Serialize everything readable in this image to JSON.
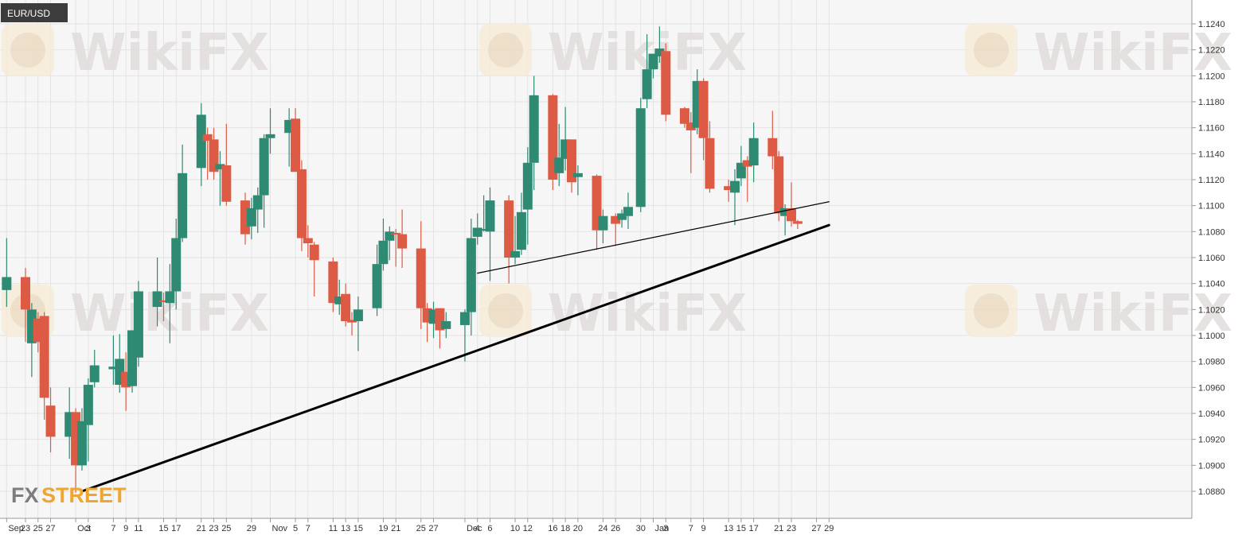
{
  "symbol": "EUR/USD",
  "watermark": {
    "text": "WikiFX"
  },
  "logo": {
    "part1": "FX",
    "part2": "STREET"
  },
  "colors": {
    "background": "#f6f6f6",
    "grid": "#e3e3e3",
    "up": "#2e8a72",
    "down": "#dd5a45",
    "trendline": "#000000",
    "axis_text": "#333333",
    "label_bg": "#3c3c3c"
  },
  "chart_data": {
    "type": "candlestick",
    "title": "EUR/USD",
    "xlabel": "",
    "ylabel": "",
    "ylim": [
      1.0862,
      1.1254
    ],
    "yticks": [
      "1.0880",
      "1.0900",
      "1.0920",
      "1.0940",
      "1.0960",
      "1.0980",
      "1.1000",
      "1.1020",
      "1.1040",
      "1.1060",
      "1.1080",
      "1.1100",
      "1.1120",
      "1.1140",
      "1.1160",
      "1.1180",
      "1.1200",
      "1.1220",
      "1.1240"
    ],
    "xticks": [
      "Sep",
      "23",
      "25",
      "27",
      "Oct",
      "3",
      "7",
      "9",
      "11",
      "15",
      "17",
      "21",
      "23",
      "25",
      "29",
      "Nov",
      "5",
      "7",
      "11",
      "13",
      "15",
      "19",
      "21",
      "25",
      "27",
      "Dec",
      "4",
      "6",
      "10",
      "12",
      "16",
      "18",
      "20",
      "24",
      "26",
      "30",
      "Jan",
      "3",
      "7",
      "9",
      "13",
      "15",
      "17",
      "21",
      "23",
      "27",
      "29"
    ],
    "grid": true,
    "series": [
      {
        "values": [
          {
            "date": "2019-09-20",
            "open": 1.1035,
            "high": 1.1075,
            "low": 1.1022,
            "close": 1.1045
          },
          {
            "date": "2019-09-23",
            "open": 1.1045,
            "high": 1.1052,
            "low": 1.0995,
            "close": 1.102
          },
          {
            "date": "2019-09-24",
            "open": 1.0994,
            "high": 1.1025,
            "low": 1.0968,
            "close": 1.102
          },
          {
            "date": "2019-09-25",
            "open": 1.1013,
            "high": 1.1018,
            "low": 1.0987,
            "close": 1.0995
          },
          {
            "date": "2019-09-26",
            "open": 1.1015,
            "high": 1.1018,
            "low": 1.0935,
            "close": 1.0952
          },
          {
            "date": "2019-09-27",
            "open": 1.0946,
            "high": 1.096,
            "low": 1.091,
            "close": 1.0922
          },
          {
            "date": "2019-09-30",
            "open": 1.0922,
            "high": 1.096,
            "low": 1.0905,
            "close": 1.0941
          },
          {
            "date": "2019-10-01",
            "open": 1.0941,
            "high": 1.0944,
            "low": 1.0879,
            "close": 1.09
          },
          {
            "date": "2019-10-02",
            "open": 1.09,
            "high": 1.0944,
            "low": 1.0896,
            "close": 1.0934
          },
          {
            "date": "2019-10-03",
            "open": 1.0931,
            "high": 1.0967,
            "low": 1.0903,
            "close": 1.0962
          },
          {
            "date": "2019-10-04",
            "open": 1.0964,
            "high": 1.0989,
            "low": 1.096,
            "close": 1.0977
          },
          {
            "date": "2019-10-07",
            "open": 1.0974,
            "high": 1.1,
            "low": 1.0962,
            "close": 1.0976
          },
          {
            "date": "2019-10-08",
            "open": 1.0962,
            "high": 1.1001,
            "low": 1.0956,
            "close": 1.0982
          },
          {
            "date": "2019-10-09",
            "open": 1.0972,
            "high": 1.0987,
            "low": 1.0942,
            "close": 1.096
          },
          {
            "date": "2019-10-10",
            "open": 1.0961,
            "high": 1.0995,
            "low": 1.0956,
            "close": 1.1004
          },
          {
            "date": "2019-10-11",
            "open": 1.0983,
            "high": 1.1042,
            "low": 1.0976,
            "close": 1.1034
          },
          {
            "date": "2019-10-14",
            "open": 1.1022,
            "high": 1.106,
            "low": 1.1007,
            "close": 1.1034
          },
          {
            "date": "2019-10-15",
            "open": 1.1027,
            "high": 1.1033,
            "low": 1.1011,
            "close": 1.1026
          },
          {
            "date": "2019-10-16",
            "open": 1.1025,
            "high": 1.1055,
            "low": 1.0994,
            "close": 1.1034
          },
          {
            "date": "2019-10-17",
            "open": 1.1034,
            "high": 1.109,
            "low": 1.102,
            "close": 1.1075
          },
          {
            "date": "2019-10-18",
            "open": 1.1075,
            "high": 1.1147,
            "low": 1.1072,
            "close": 1.1125
          },
          {
            "date": "2019-10-21",
            "open": 1.1129,
            "high": 1.1179,
            "low": 1.1115,
            "close": 1.117
          },
          {
            "date": "2019-10-22",
            "open": 1.1155,
            "high": 1.116,
            "low": 1.112,
            "close": 1.115
          },
          {
            "date": "2019-10-23",
            "open": 1.1151,
            "high": 1.116,
            "low": 1.112,
            "close": 1.1126
          },
          {
            "date": "2019-10-24",
            "open": 1.1128,
            "high": 1.1142,
            "low": 1.11,
            "close": 1.1132
          },
          {
            "date": "2019-10-25",
            "open": 1.1131,
            "high": 1.1163,
            "low": 1.11,
            "close": 1.1103
          },
          {
            "date": "2019-10-28",
            "open": 1.1104,
            "high": 1.111,
            "low": 1.107,
            "close": 1.1078
          },
          {
            "date": "2019-10-29",
            "open": 1.1084,
            "high": 1.1106,
            "low": 1.1074,
            "close": 1.1098
          },
          {
            "date": "2019-10-30",
            "open": 1.1097,
            "high": 1.1114,
            "low": 1.1079,
            "close": 1.1108
          },
          {
            "date": "2019-10-31",
            "open": 1.1108,
            "high": 1.1155,
            "low": 1.1083,
            "close": 1.1152
          },
          {
            "date": "2019-11-01",
            "open": 1.1152,
            "high": 1.1175,
            "low": 1.114,
            "close": 1.1155
          },
          {
            "date": "2019-11-04",
            "open": 1.1156,
            "high": 1.1175,
            "low": 1.113,
            "close": 1.1166
          },
          {
            "date": "2019-11-05",
            "open": 1.1167,
            "high": 1.1175,
            "low": 1.1128,
            "close": 1.1126
          },
          {
            "date": "2019-11-06",
            "open": 1.1128,
            "high": 1.1135,
            "low": 1.1065,
            "close": 1.1075
          },
          {
            "date": "2019-11-07",
            "open": 1.1075,
            "high": 1.1085,
            "low": 1.106,
            "close": 1.1071
          },
          {
            "date": "2019-11-08",
            "open": 1.107,
            "high": 1.1072,
            "low": 1.103,
            "close": 1.1058
          },
          {
            "date": "2019-11-11",
            "open": 1.1057,
            "high": 1.106,
            "low": 1.1018,
            "close": 1.1025
          },
          {
            "date": "2019-11-12",
            "open": 1.1024,
            "high": 1.1043,
            "low": 1.1016,
            "close": 1.103
          },
          {
            "date": "2019-11-13",
            "open": 1.1032,
            "high": 1.104,
            "low": 1.1007,
            "close": 1.1011
          },
          {
            "date": "2019-11-14",
            "open": 1.1012,
            "high": 1.1018,
            "low": 1.1,
            "close": 1.101
          },
          {
            "date": "2019-11-15",
            "open": 1.1011,
            "high": 1.103,
            "low": 1.0988,
            "close": 1.102
          },
          {
            "date": "2019-11-18",
            "open": 1.1021,
            "high": 1.107,
            "low": 1.1015,
            "close": 1.1055
          },
          {
            "date": "2019-11-19",
            "open": 1.1055,
            "high": 1.109,
            "low": 1.105,
            "close": 1.1073
          },
          {
            "date": "2019-11-20",
            "open": 1.1073,
            "high": 1.1084,
            "low": 1.1058,
            "close": 1.108
          },
          {
            "date": "2019-11-21",
            "open": 1.1079,
            "high": 1.1082,
            "low": 1.1053,
            "close": 1.1078
          },
          {
            "date": "2019-11-22",
            "open": 1.1078,
            "high": 1.1097,
            "low": 1.1052,
            "close": 1.1067
          },
          {
            "date": "2019-11-25",
            "open": 1.1067,
            "high": 1.1088,
            "low": 1.1005,
            "close": 1.1021
          },
          {
            "date": "2019-11-26",
            "open": 1.1021,
            "high": 1.1025,
            "low": 1.0995,
            "close": 1.101
          },
          {
            "date": "2019-11-27",
            "open": 1.1009,
            "high": 1.1026,
            "low": 1.0998,
            "close": 1.102
          },
          {
            "date": "2019-11-28",
            "open": 1.1021,
            "high": 1.1021,
            "low": 1.099,
            "close": 1.1004
          },
          {
            "date": "2019-11-29",
            "open": 1.1005,
            "high": 1.1018,
            "low": 1.0998,
            "close": 1.1011
          },
          {
            "date": "2019-12-02",
            "open": 1.1008,
            "high": 1.102,
            "low": 1.098,
            "close": 1.1018
          },
          {
            "date": "2019-12-03",
            "open": 1.1018,
            "high": 1.109,
            "low": 1.1,
            "close": 1.1075
          },
          {
            "date": "2019-12-04",
            "open": 1.1076,
            "high": 1.1094,
            "low": 1.107,
            "close": 1.1083
          },
          {
            "date": "2019-12-05",
            "open": 1.1082,
            "high": 1.1108,
            "low": 1.108,
            "close": 1.1082
          },
          {
            "date": "2019-12-06",
            "open": 1.108,
            "high": 1.1114,
            "low": 1.1042,
            "close": 1.1104
          },
          {
            "date": "2019-12-09",
            "open": 1.1104,
            "high": 1.1108,
            "low": 1.104,
            "close": 1.106
          },
          {
            "date": "2019-12-10",
            "open": 1.106,
            "high": 1.1092,
            "low": 1.1055,
            "close": 1.1065
          },
          {
            "date": "2019-12-11",
            "open": 1.1066,
            "high": 1.111,
            "low": 1.1062,
            "close": 1.1095
          },
          {
            "date": "2019-12-12",
            "open": 1.1097,
            "high": 1.1145,
            "low": 1.107,
            "close": 1.1133
          },
          {
            "date": "2019-12-13",
            "open": 1.1133,
            "high": 1.12,
            "low": 1.1112,
            "close": 1.1185
          },
          {
            "date": "2019-12-16",
            "open": 1.1185,
            "high": 1.1186,
            "low": 1.1112,
            "close": 1.112
          },
          {
            "date": "2019-12-17",
            "open": 1.1125,
            "high": 1.1163,
            "low": 1.1115,
            "close": 1.1137
          },
          {
            "date": "2019-12-18",
            "open": 1.1136,
            "high": 1.1176,
            "low": 1.1127,
            "close": 1.1151
          },
          {
            "date": "2019-12-19",
            "open": 1.1151,
            "high": 1.115,
            "low": 1.111,
            "close": 1.1118
          },
          {
            "date": "2019-12-20",
            "open": 1.1122,
            "high": 1.1131,
            "low": 1.1108,
            "close": 1.1125
          },
          {
            "date": "2019-12-23",
            "open": 1.1123,
            "high": 1.1124,
            "low": 1.1066,
            "close": 1.1081
          },
          {
            "date": "2019-12-24",
            "open": 1.1081,
            "high": 1.1097,
            "low": 1.1071,
            "close": 1.1092
          },
          {
            "date": "2019-12-26",
            "open": 1.1092,
            "high": 1.1094,
            "low": 1.1069,
            "close": 1.1086
          },
          {
            "date": "2019-12-27",
            "open": 1.1089,
            "high": 1.1097,
            "low": 1.1083,
            "close": 1.1094
          },
          {
            "date": "2019-12-28",
            "open": 1.1092,
            "high": 1.111,
            "low": 1.1082,
            "close": 1.1099
          },
          {
            "date": "2019-12-30",
            "open": 1.1099,
            "high": 1.1183,
            "low": 1.1095,
            "close": 1.1175
          },
          {
            "date": "2019-12-31",
            "open": 1.1182,
            "high": 1.1232,
            "low": 1.1175,
            "close": 1.1205
          },
          {
            "date": "2020-01-01",
            "open": 1.1205,
            "high": 1.1215,
            "low": 1.1198,
            "close": 1.1217
          },
          {
            "date": "2020-01-02",
            "open": 1.1215,
            "high": 1.1238,
            "low": 1.121,
            "close": 1.1221
          },
          {
            "date": "2020-01-03",
            "open": 1.1219,
            "high": 1.1225,
            "low": 1.1165,
            "close": 1.117
          },
          {
            "date": "2020-01-06",
            "open": 1.1175,
            "high": 1.1176,
            "low": 1.116,
            "close": 1.1163
          },
          {
            "date": "2020-01-07",
            "open": 1.1164,
            "high": 1.1172,
            "low": 1.1125,
            "close": 1.1158
          },
          {
            "date": "2020-01-08",
            "open": 1.116,
            "high": 1.1205,
            "low": 1.1155,
            "close": 1.1196
          },
          {
            "date": "2020-01-09",
            "open": 1.1196,
            "high": 1.1198,
            "low": 1.1135,
            "close": 1.1152
          },
          {
            "date": "2020-01-10",
            "open": 1.1152,
            "high": 1.1165,
            "low": 1.111,
            "close": 1.1113
          },
          {
            "date": "2020-01-13",
            "open": 1.1115,
            "high": 1.112,
            "low": 1.1103,
            "close": 1.1112
          },
          {
            "date": "2020-01-14",
            "open": 1.111,
            "high": 1.1128,
            "low": 1.1085,
            "close": 1.1119
          },
          {
            "date": "2020-01-15",
            "open": 1.1121,
            "high": 1.1146,
            "low": 1.1115,
            "close": 1.1133
          },
          {
            "date": "2020-01-16",
            "open": 1.1135,
            "high": 1.1138,
            "low": 1.1103,
            "close": 1.113
          },
          {
            "date": "2020-01-17",
            "open": 1.1131,
            "high": 1.1164,
            "low": 1.1118,
            "close": 1.1152
          },
          {
            "date": "2020-01-20",
            "open": 1.1152,
            "high": 1.1173,
            "low": 1.1128,
            "close": 1.1138
          },
          {
            "date": "2020-01-21",
            "open": 1.1138,
            "high": 1.1142,
            "low": 1.1088,
            "close": 1.1094
          },
          {
            "date": "2020-01-22",
            "open": 1.1092,
            "high": 1.1101,
            "low": 1.1077,
            "close": 1.1098
          },
          {
            "date": "2020-01-23",
            "open": 1.1098,
            "high": 1.1118,
            "low": 1.1084,
            "close": 1.1088
          },
          {
            "date": "2020-01-24",
            "open": 1.1088,
            "high": 1.1089,
            "low": 1.1082,
            "close": 1.1086
          }
        ]
      }
    ],
    "annotations": [
      {
        "type": "trendline",
        "style": "thick",
        "from": {
          "date": "2019-10-02",
          "price": 1.088
        },
        "to": {
          "date": "2020-01-29",
          "price": 1.1085
        }
      },
      {
        "type": "trendline",
        "style": "thin",
        "from": {
          "date": "2019-12-04",
          "price": 1.1048
        },
        "to": {
          "date": "2020-01-29",
          "price": 1.1103
        }
      }
    ]
  }
}
